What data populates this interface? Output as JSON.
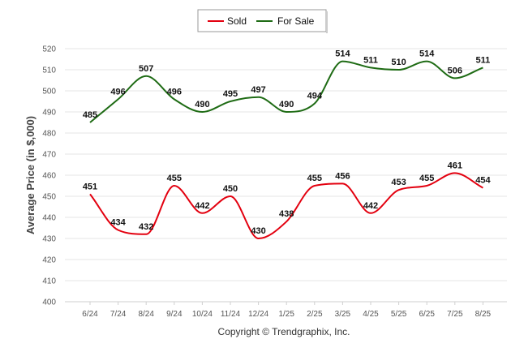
{
  "chart_data": {
    "type": "line",
    "categories": [
      "6/24",
      "7/24",
      "8/24",
      "9/24",
      "10/24",
      "11/24",
      "12/24",
      "1/25",
      "2/25",
      "3/25",
      "4/25",
      "5/25",
      "6/25",
      "7/25",
      "8/25"
    ],
    "series": [
      {
        "name": "Sold",
        "color": "#e3000f",
        "values": [
          451,
          434,
          432,
          455,
          442,
          450,
          430,
          438,
          455,
          456,
          442,
          453,
          455,
          461,
          454
        ]
      },
      {
        "name": "For Sale",
        "color": "#1e6b14",
        "values": [
          485,
          496,
          507,
          496,
          490,
          495,
          497,
          490,
          494,
          514,
          511,
          510,
          514,
          506,
          511
        ]
      }
    ],
    "ylabel": "Average Price (in $,000)",
    "ylim": [
      400,
      520
    ],
    "yticks": [
      400,
      410,
      420,
      430,
      440,
      450,
      460,
      470,
      480,
      490,
      500,
      510,
      520
    ],
    "grid": true,
    "legend_position": "top-center",
    "smooth": true
  },
  "footer": {
    "copyright": "Copyright © Trendgraphix, Inc."
  }
}
